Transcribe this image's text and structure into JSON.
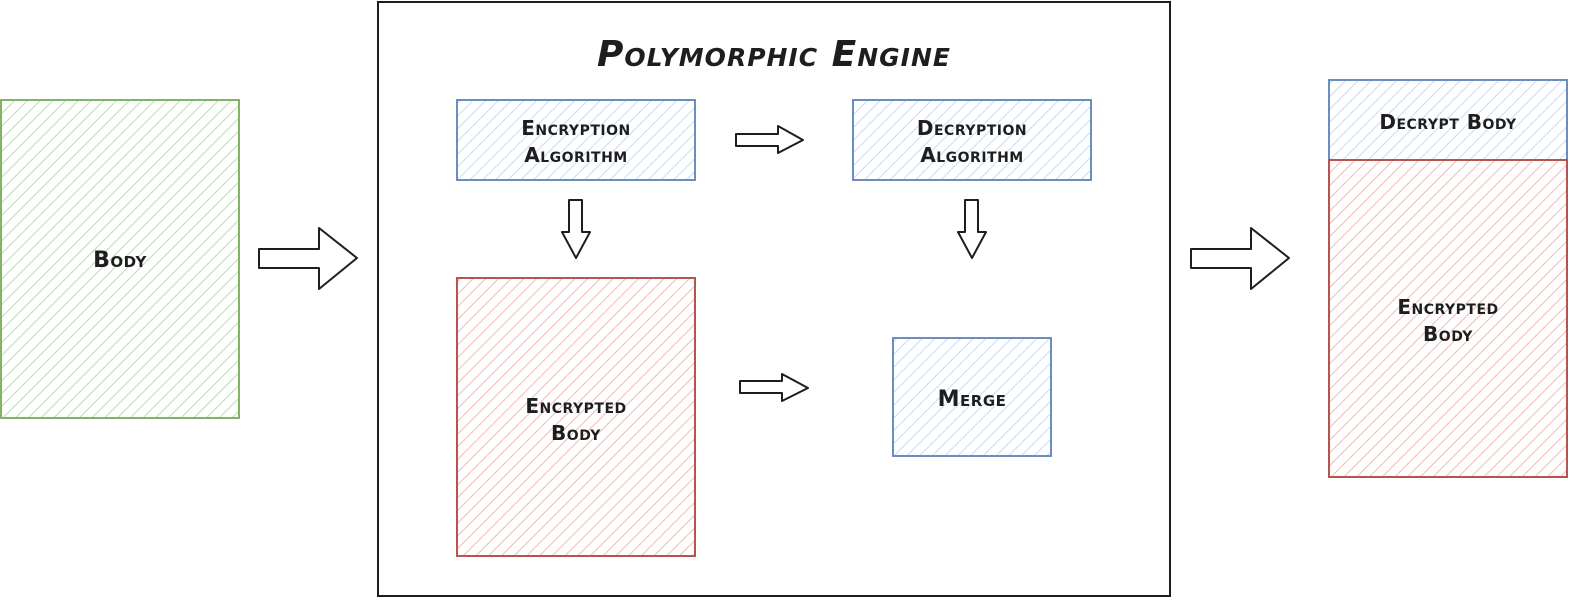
{
  "diagram": {
    "body_label": "Body",
    "engine_title": "Polymorphic Engine",
    "encryption_algorithm": {
      "line1": "Encryption",
      "line2": "Algorithm"
    },
    "decryption_algorithm": {
      "line1": "Decryption",
      "line2": "Algorithm"
    },
    "encrypted_body": {
      "line1": "Encrypted",
      "line2": "Body"
    },
    "merge_label": "Merge",
    "output": {
      "decrypt_body": "Decrypt Body",
      "encrypted_body": {
        "line1": "Encrypted",
        "line2": "Body"
      }
    }
  },
  "colors": {
    "green_stroke": "#82b366",
    "green_fill": "#d5e8d4",
    "blue_stroke": "#6c8ebf",
    "blue_fill": "#dae8fc",
    "red_stroke": "#b85450",
    "red_fill": "#f8cecc",
    "ink": "#1e1e1e"
  }
}
